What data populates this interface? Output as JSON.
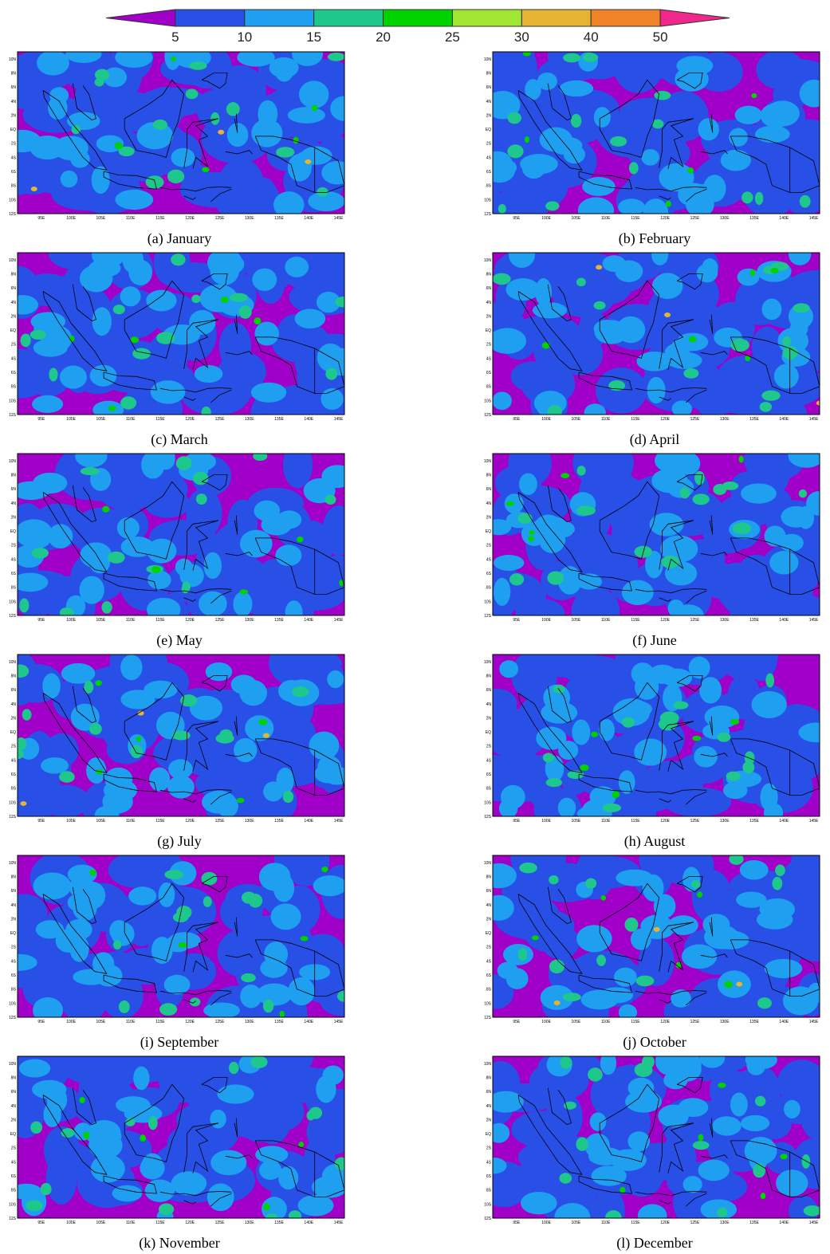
{
  "colorbar": {
    "labels": [
      5,
      10,
      15,
      20,
      25,
      30,
      40,
      50
    ],
    "colors": [
      "#a000c8",
      "#2850e6",
      "#1e9ff0",
      "#1ec88c",
      "#00d200",
      "#a0e632",
      "#e6b432",
      "#f08228",
      "#f0288c"
    ]
  },
  "lat_ticks": [
    "10N",
    "8N",
    "6N",
    "4N",
    "2N",
    "EQ",
    "2S",
    "4S",
    "6S",
    "8S",
    "10S",
    "12S"
  ],
  "lon_ticks": [
    "95E",
    "100E",
    "105E",
    "110E",
    "115E",
    "120E",
    "125E",
    "130E",
    "135E",
    "140E",
    "145E"
  ],
  "panels": [
    {
      "caption": "(a) January"
    },
    {
      "caption": "(b) February"
    },
    {
      "caption": "(c) March"
    },
    {
      "caption": "(d) April"
    },
    {
      "caption": "(e) May"
    },
    {
      "caption": "(f) June"
    },
    {
      "caption": "(g) July"
    },
    {
      "caption": "(h) August"
    },
    {
      "caption": "(i) September"
    },
    {
      "caption": "(j) October"
    },
    {
      "caption": "(k) November"
    },
    {
      "caption": "(l) December"
    }
  ]
}
